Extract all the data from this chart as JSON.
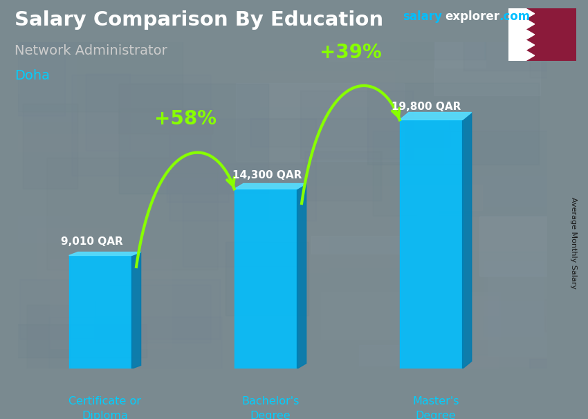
{
  "title": "Salary Comparison By Education",
  "subtitle": "Network Administrator",
  "location": "Doha",
  "categories": [
    "Certificate or\nDiploma",
    "Bachelor's\nDegree",
    "Master's\nDegree"
  ],
  "values": [
    9010,
    14300,
    19800
  ],
  "value_labels": [
    "9,010 QAR",
    "14,300 QAR",
    "19,800 QAR"
  ],
  "pct_labels": [
    "+58%",
    "+39%"
  ],
  "bar_color_front": "#00BFFF",
  "bar_color_right": "#007BAF",
  "bar_color_top": "#55DDFF",
  "pct_color": "#88FF00",
  "title_color": "#FFFFFF",
  "subtitle_color": "#CCCCCC",
  "location_color": "#00CFFF",
  "ylabel": "Average Monthly Salary",
  "figsize": [
    8.5,
    6.06
  ],
  "dpi": 100,
  "bar_width": 0.38,
  "ylim": [
    0,
    26000
  ],
  "bg_color": "#7a8a90"
}
